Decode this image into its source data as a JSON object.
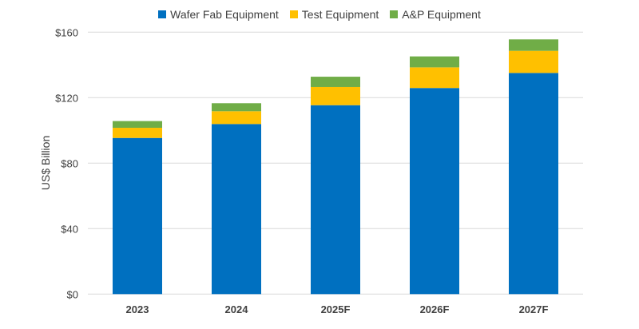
{
  "chart_data": {
    "type": "bar",
    "stacked": true,
    "title": "",
    "xlabel": "",
    "ylabel": "US$ Billion",
    "ylim": [
      0,
      160
    ],
    "yticks": [
      0,
      40,
      80,
      120,
      160
    ],
    "ytick_labels": [
      "$0",
      "$40",
      "$80",
      "$120",
      "$160"
    ],
    "grid": true,
    "legend_placement": "top",
    "categories": [
      "2023",
      "2024",
      "2025F",
      "2026F",
      "2027F"
    ],
    "series": [
      {
        "name": "Wafer Fab Equipment",
        "color": "#0070C0",
        "values": [
          95.4,
          103.9,
          115.4,
          125.9,
          135.1
        ]
      },
      {
        "name": "Test Equipment",
        "color": "#FFC000",
        "values": [
          6.2,
          7.8,
          11.1,
          12.6,
          13.5
        ]
      },
      {
        "name": "A&P Equipment",
        "color": "#70AD47",
        "values": [
          4.1,
          4.9,
          6.3,
          6.7,
          7.0
        ]
      }
    ]
  }
}
